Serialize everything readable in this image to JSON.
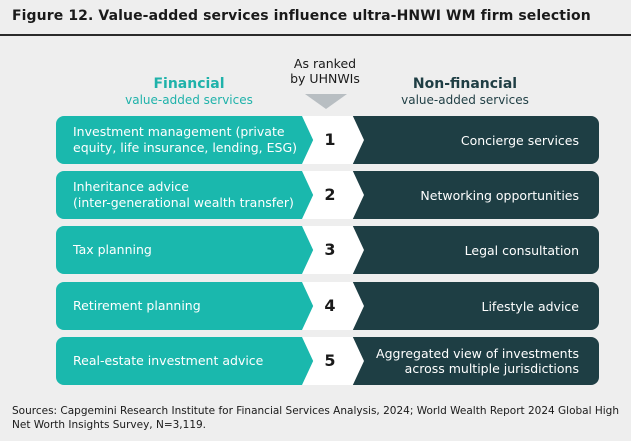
{
  "title": "Figure 12. Value-added services influence ultra-HNWI WM firm selection",
  "financial_header": {
    "main": "Financial",
    "sub": "value-added services"
  },
  "ranked_header": {
    "line1": "As ranked",
    "line2": "by UHNWIs"
  },
  "nonfinancial_header": {
    "main": "Non-financial",
    "sub": "value-added services"
  },
  "rows": [
    {
      "rank": "1",
      "financial": "Investment management (private\nequity, life insurance, lending, ESG)",
      "nonfinancial": "Concierge services"
    },
    {
      "rank": "2",
      "financial": "Inheritance advice\n(inter-generational wealth transfer)",
      "nonfinancial": "Networking opportunities"
    },
    {
      "rank": "3",
      "financial": "Tax planning",
      "nonfinancial": "Legal consultation"
    },
    {
      "rank": "4",
      "financial": "Retirement planning",
      "nonfinancial": "Lifestyle advice"
    },
    {
      "rank": "5",
      "financial": "Real-estate investment advice",
      "nonfinancial": "Aggregated view of investments\nacross multiple jurisdictions"
    }
  ],
  "sources": "Sources: Capgemini Research Institute for Financial Services Analysis, 2024; World Wealth Report 2024 Global High Net Worth Insights Survey, N=3,119.",
  "colors": {
    "financial": "#1ab8ad",
    "nonfinancial": "#1e3e44",
    "rank_chevron": "#ffffff",
    "financial_heading": "#1fb2aa"
  }
}
